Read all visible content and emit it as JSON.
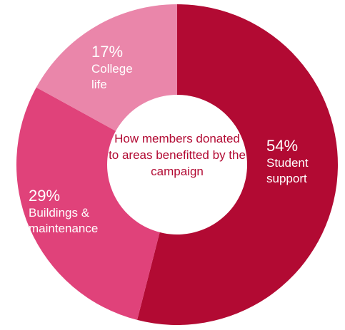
{
  "chart_data": {
    "type": "pie",
    "donut": true,
    "center_label": "How members donated to areas benefitted by the campaign",
    "slices": [
      {
        "percent_label": "54%",
        "category": "Student support",
        "value": 54,
        "color": "#b20a33"
      },
      {
        "percent_label": "29%",
        "category": "Buildings & maintenance",
        "value": 29,
        "color": "#e0427a"
      },
      {
        "percent_label": "17%",
        "category": "College life",
        "value": 17,
        "color": "#ea86aa"
      }
    ]
  }
}
